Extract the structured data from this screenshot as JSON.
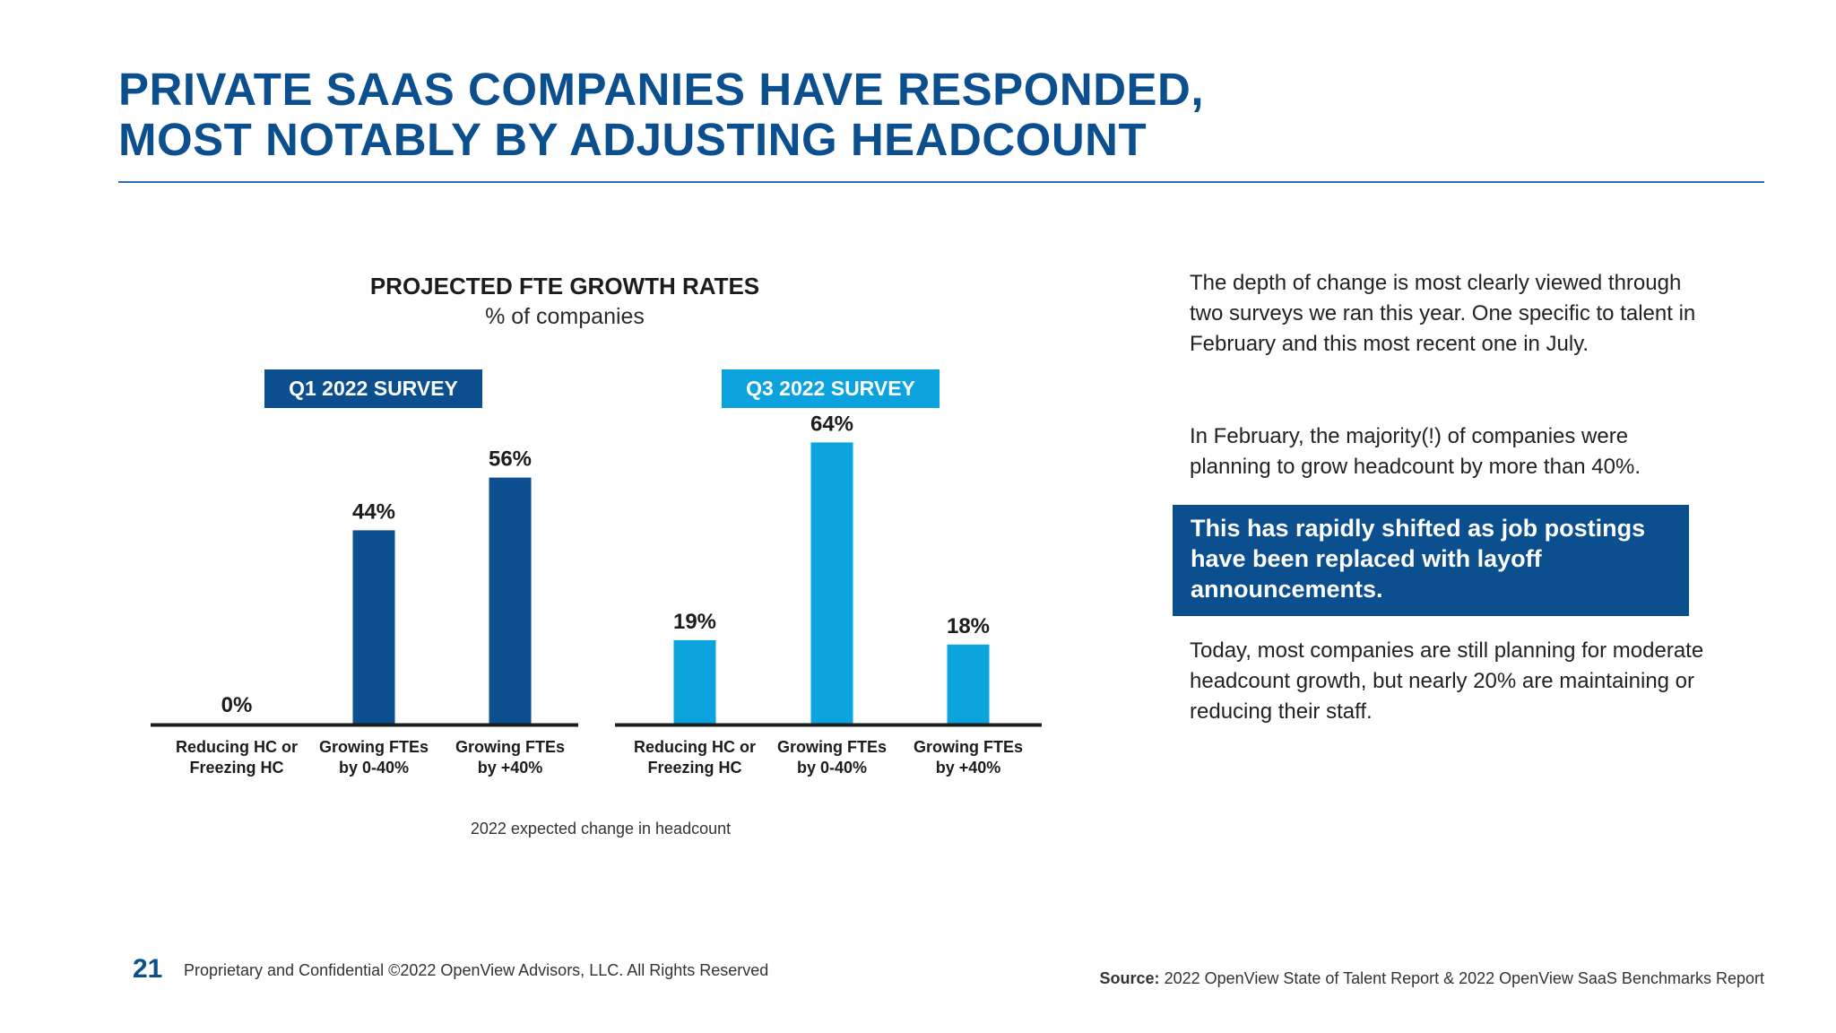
{
  "header": {
    "title_line1": "PRIVATE SAAS COMPANIES HAVE RESPONDED,",
    "title_line2": "MOST NOTABLY BY ADJUSTING HEADCOUNT"
  },
  "chart_data": {
    "type": "bar",
    "title": "PROJECTED FTE GROWTH RATES",
    "subtitle": "% of companies",
    "xlabel": "2022 expected change in headcount",
    "ylabel": "",
    "ylim": [
      0,
      70
    ],
    "categories": [
      "Reducing HC or Freezing HC",
      "Growing FTEs by 0-40%",
      "Growing FTEs by +40%"
    ],
    "category_lines": [
      [
        "Reducing HC or",
        "Freezing HC"
      ],
      [
        "Growing FTEs",
        "by 0-40%"
      ],
      [
        "Growing FTEs",
        "by +40%"
      ]
    ],
    "panels": [
      {
        "name": "Q1 2022 SURVEY",
        "color": "#0b4f8e",
        "values": [
          0,
          44,
          56
        ],
        "labels": [
          "0%",
          "44%",
          "56%"
        ]
      },
      {
        "name": "Q3 2022 SURVEY",
        "color": "#0aa3dd",
        "values": [
          19,
          64,
          18
        ],
        "labels": [
          "19%",
          "64%",
          "18%"
        ]
      }
    ]
  },
  "text": {
    "para1": "The depth of change is most clearly viewed through two surveys we ran this year. One specific to talent in February and this most recent one in July.",
    "para2": "In February, the majority(!) of companies were planning to grow headcount by more than 40%.",
    "callout": "This has rapidly shifted as job postings have been replaced with layoff announcements.",
    "para3": "Today, most companies are still planning for moderate headcount growth, but nearly 20% are maintaining or reducing their staff."
  },
  "footer": {
    "page_number": "21",
    "note": "Proprietary and Confidential ©2022 OpenView Advisors, LLC. All Rights Reserved",
    "source_label": "Source:",
    "source_text": "2022 OpenView State of Talent Report & 2022 OpenView SaaS Benchmarks Report"
  },
  "colors": {
    "brand_dark": "#0b4f8e",
    "brand_light": "#0aa3dd"
  }
}
